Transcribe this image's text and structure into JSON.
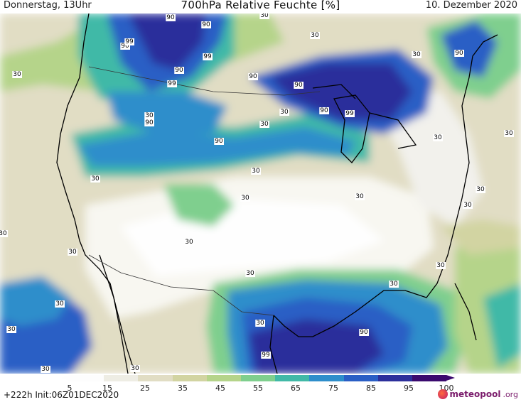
{
  "header": {
    "left": "Donnerstag, 13Uhr",
    "title": "700hPa Relative Feuchte [%]",
    "right": "10. Dezember 2020"
  },
  "footer": {
    "run_info": "+222h Init:06Z01DEC2020",
    "logo_main": "meteopool",
    "logo_sub": ".org"
  },
  "colorbar": {
    "ticks": [
      "5",
      "15",
      "25",
      "35",
      "45",
      "55",
      "65",
      "75",
      "85",
      "95",
      "100"
    ],
    "colors": [
      "#fdfdfd",
      "#eeede4",
      "#e1ddc4",
      "#d2d4a2",
      "#b5d48a",
      "#7fcf8e",
      "#41b9a7",
      "#2e8ecb",
      "#2a5ec5",
      "#2c2f9b",
      "#3a0a6e"
    ]
  },
  "map_labels": [
    "90",
    "90",
    "90",
    "99",
    "99",
    "90",
    "99",
    "90",
    "90",
    "30",
    "30",
    "30",
    "30",
    "90",
    "90",
    "99",
    "90",
    "30",
    "30",
    "90",
    "30",
    "30",
    "30",
    "30",
    "30",
    "30",
    "30",
    "30",
    "30",
    "30",
    "30",
    "30",
    "30",
    "30",
    "30",
    "30",
    "30",
    "30",
    "30",
    "90",
    "99",
    "30"
  ]
}
